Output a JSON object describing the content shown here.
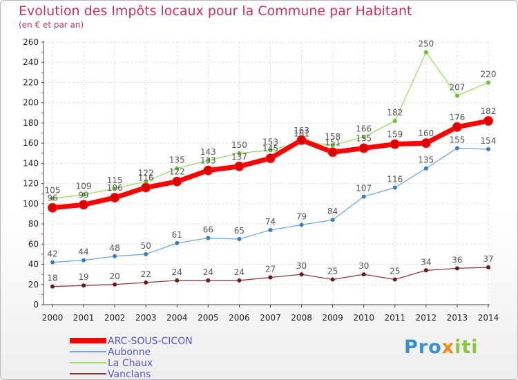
{
  "chart_data": {
    "type": "line",
    "title": "Evolution des Impôts locaux pour la Commune par Habitant",
    "subtitle": "(en € et par an)",
    "x": [
      "2000",
      "2001",
      "2002",
      "2003",
      "2004",
      "2005",
      "2006",
      "2007",
      "2008",
      "2009",
      "2010",
      "2011",
      "2012",
      "2013",
      "2014"
    ],
    "ylim": [
      0,
      260
    ],
    "yticks": [
      0,
      20,
      40,
      60,
      80,
      100,
      120,
      140,
      160,
      180,
      200,
      220,
      240,
      260
    ],
    "series": [
      {
        "name": "ARC-SOUS-CICON",
        "color": "#ff0000",
        "values": [
          96,
          99,
          106,
          116,
          122,
          133,
          137,
          145,
          163,
          151,
          155,
          159,
          160,
          176,
          182
        ]
      },
      {
        "name": "Aubonne",
        "color": "#6ea8d8",
        "values": [
          42,
          44,
          48,
          50,
          61,
          66,
          65,
          74,
          79,
          84,
          107,
          116,
          135,
          155,
          154
        ]
      },
      {
        "name": "La Chaux",
        "color": "#99dd66",
        "values": [
          105,
          109,
          115,
          122,
          135,
          143,
          150,
          153,
          161,
          158,
          166,
          182,
          250,
          207,
          220
        ]
      },
      {
        "name": "Vanclans",
        "color": "#8b3a3a",
        "values": [
          18,
          19,
          20,
          22,
          24,
          24,
          24,
          27,
          30,
          25,
          30,
          25,
          34,
          36,
          37
        ]
      }
    ]
  },
  "logo": {
    "p1": "Pro",
    "p2": "x",
    "p3": "iti"
  }
}
